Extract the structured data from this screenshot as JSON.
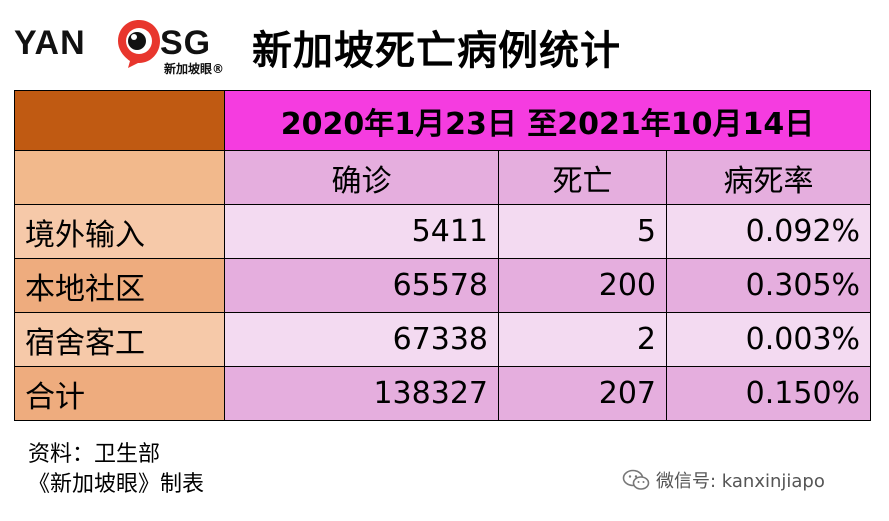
{
  "logo": {
    "left_text": "YAN",
    "right_text": "SG",
    "subtitle": "新加坡眼®"
  },
  "title": "新加坡死亡病例统计",
  "table": {
    "date_range": "2020年1月23日 至2021年10月14日",
    "columns": [
      "确诊",
      "死亡",
      "病死率"
    ],
    "rows": [
      {
        "label": "境外输入",
        "confirmed": "5411",
        "deaths": "5",
        "fatality_rate": "0.092%"
      },
      {
        "label": "本地社区",
        "confirmed": "65578",
        "deaths": "200",
        "fatality_rate": "0.305%"
      },
      {
        "label": "宿舍客工",
        "confirmed": "67338",
        "deaths": "2",
        "fatality_rate": "0.003%"
      },
      {
        "label": "合计",
        "confirmed": "138327",
        "deaths": "207",
        "fatality_rate": "0.150%"
      }
    ]
  },
  "source": {
    "line1": "资料：卫生部",
    "line2": "《新加坡眼》制表"
  },
  "watermark": {
    "text": "微信号: kanxinjiapo",
    "icon": "wechat-icon"
  },
  "colors": {
    "corner": "#c05a12",
    "date_header": "#f53ce0",
    "column_header": "#e5aede",
    "row_label_light": "#f6c9a9",
    "row_label_dark": "#eeac7e",
    "cell_light": "#f3daf1",
    "cell_dark": "#e5aede",
    "logo_red": "#e8362d"
  }
}
